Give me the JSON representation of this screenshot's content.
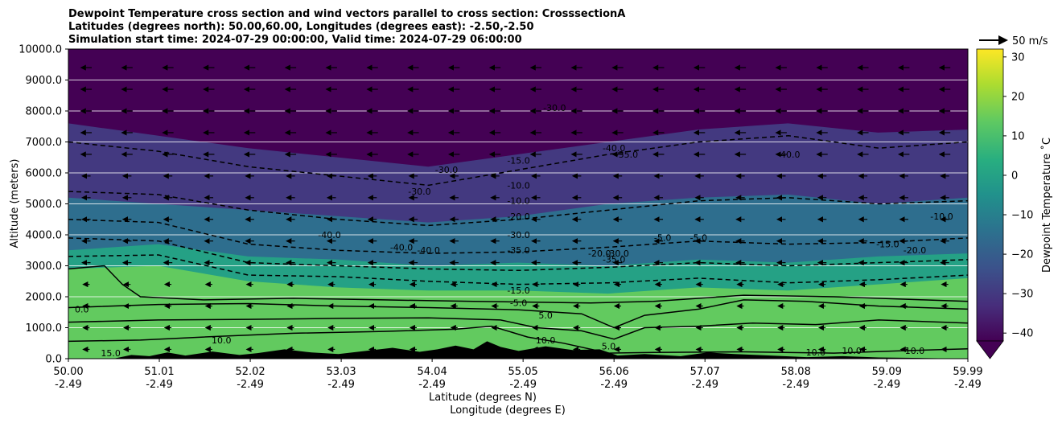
{
  "chart_data": {
    "type": "heatmap",
    "title_lines": [
      "Dewpoint Temperature cross section and wind vectors parallel to cross section: CrosssectionA",
      "Latitudes (degrees north): 50.00,60.00, Longitudes (degrees east): -2.50,-2.50",
      "Simulation start time: 2024-07-29 00:00:00, Valid time: 2024-07-29 06:00:00"
    ],
    "ylabel": "Altitude (meters)",
    "xlabel_lines": [
      "Latitude (degrees N)",
      "Longitude (degrees E)"
    ],
    "ylim": [
      0,
      10000
    ],
    "xlim": [
      50.0,
      59.99
    ],
    "y_ticks": [
      {
        "value": 0,
        "label": "0.0"
      },
      {
        "value": 1000,
        "label": "1000.0"
      },
      {
        "value": 2000,
        "label": "2000.0"
      },
      {
        "value": 3000,
        "label": "3000.0"
      },
      {
        "value": 4000,
        "label": "4000.0"
      },
      {
        "value": 5000,
        "label": "5000.0"
      },
      {
        "value": 6000,
        "label": "6000.0"
      },
      {
        "value": 7000,
        "label": "7000.0"
      },
      {
        "value": 8000,
        "label": "8000.0"
      },
      {
        "value": 9000,
        "label": "9000.0"
      },
      {
        "value": 10000,
        "label": "10000.0"
      }
    ],
    "x_ticks": [
      {
        "value": 50.0,
        "lat": "50.00",
        "lon": "-2.49"
      },
      {
        "value": 51.01,
        "lat": "51.01",
        "lon": "-2.49"
      },
      {
        "value": 52.02,
        "lat": "52.02",
        "lon": "-2.49"
      },
      {
        "value": 53.03,
        "lat": "53.03",
        "lon": "-2.49"
      },
      {
        "value": 54.04,
        "lat": "54.04",
        "lon": "-2.49"
      },
      {
        "value": 55.05,
        "lat": "55.05",
        "lon": "-2.49"
      },
      {
        "value": 56.06,
        "lat": "56.06",
        "lon": "-2.49"
      },
      {
        "value": 57.07,
        "lat": "57.07",
        "lon": "-2.49"
      },
      {
        "value": 58.08,
        "lat": "58.08",
        "lon": "-2.49"
      },
      {
        "value": 59.09,
        "lat": "59.09",
        "lon": "-2.49"
      },
      {
        "value": 59.99,
        "lat": "59.99",
        "lon": "-2.49"
      }
    ],
    "grid": {
      "horizontal": true,
      "vertical": false
    },
    "colorbar": {
      "label": "Dewpoint Temperature ˚C",
      "range": [
        -42,
        32
      ],
      "extend": "min",
      "colormap": "viridis",
      "ticks": [
        {
          "value": -40,
          "label": "−40"
        },
        {
          "value": -30,
          "label": "−30"
        },
        {
          "value": -20,
          "label": "−20"
        },
        {
          "value": -10,
          "label": "−10"
        },
        {
          "value": 0,
          "label": "0"
        },
        {
          "value": 10,
          "label": "10"
        },
        {
          "value": 20,
          "label": "20"
        },
        {
          "value": 30,
          "label": "30"
        }
      ]
    },
    "quiver_key": {
      "label": "50 m/s",
      "speed": 50
    },
    "wind_field": {
      "direction": "toward south (left)",
      "upper_level_speed_ms": 15,
      "lower_level_speed_ms": 3
    },
    "temperature_layers": [
      {
        "top_m": [
          2900,
          3000,
          2500,
          2300,
          2200,
          2200,
          2100,
          2300,
          2200,
          2400,
          2600
        ],
        "dewpoint_c": 14
      },
      {
        "top_m": [
          3500,
          3700,
          3300,
          3200,
          3000,
          3100,
          3000,
          3200,
          3100,
          3300,
          3400
        ],
        "dewpoint_c": 0
      },
      {
        "top_m": [
          5200,
          5000,
          4800,
          4600,
          4400,
          4600,
          5000,
          5200,
          5300,
          5000,
          5200
        ],
        "dewpoint_c": -15
      },
      {
        "top_m": [
          7600,
          7200,
          6800,
          6500,
          6200,
          6600,
          7000,
          7400,
          7600,
          7300,
          7400
        ],
        "dewpoint_c": -30
      },
      {
        "top_m": [
          10000,
          10000,
          10000,
          10000,
          10000,
          10000,
          10000,
          10000,
          10000,
          10000,
          10000
        ],
        "dewpoint_c": -42
      }
    ],
    "terrain_m": [
      {
        "x": 50.0,
        "h": 0
      },
      {
        "x": 50.5,
        "h": 0
      },
      {
        "x": 50.7,
        "h": 120
      },
      {
        "x": 50.9,
        "h": 80
      },
      {
        "x": 51.1,
        "h": 200
      },
      {
        "x": 51.3,
        "h": 100
      },
      {
        "x": 51.6,
        "h": 230
      },
      {
        "x": 51.9,
        "h": 120
      },
      {
        "x": 52.1,
        "h": 180
      },
      {
        "x": 52.4,
        "h": 300
      },
      {
        "x": 52.7,
        "h": 200
      },
      {
        "x": 53.0,
        "h": 150
      },
      {
        "x": 53.3,
        "h": 250
      },
      {
        "x": 53.6,
        "h": 350
      },
      {
        "x": 53.9,
        "h": 220
      },
      {
        "x": 54.1,
        "h": 300
      },
      {
        "x": 54.3,
        "h": 420
      },
      {
        "x": 54.5,
        "h": 300
      },
      {
        "x": 54.65,
        "h": 560
      },
      {
        "x": 54.8,
        "h": 380
      },
      {
        "x": 55.0,
        "h": 250
      },
      {
        "x": 55.3,
        "h": 400
      },
      {
        "x": 55.6,
        "h": 280
      },
      {
        "x": 55.9,
        "h": 300
      },
      {
        "x": 56.1,
        "h": 100
      },
      {
        "x": 56.4,
        "h": 150
      },
      {
        "x": 56.8,
        "h": 80
      },
      {
        "x": 57.1,
        "h": 200
      },
      {
        "x": 57.4,
        "h": 150
      },
      {
        "x": 57.8,
        "h": 100
      },
      {
        "x": 58.2,
        "h": 50
      },
      {
        "x": 58.6,
        "h": 80
      },
      {
        "x": 59.0,
        "h": 40
      },
      {
        "x": 59.5,
        "h": 20
      },
      {
        "x": 59.99,
        "h": 0
      }
    ],
    "contours_solid": [
      {
        "level": "15.0",
        "points": [
          [
            50.0,
            560
          ],
          [
            50.8,
            600
          ],
          [
            51.5,
            700
          ],
          [
            52.5,
            820
          ],
          [
            53.5,
            880
          ],
          [
            54.3,
            950
          ],
          [
            54.7,
            1050
          ],
          [
            55.1,
            700
          ],
          [
            55.5,
            500
          ],
          [
            56.0,
            180
          ],
          [
            56.5,
            200
          ],
          [
            57.5,
            220
          ],
          [
            58.5,
            180
          ],
          [
            59.2,
            250
          ],
          [
            59.99,
            320
          ]
        ]
      },
      {
        "level": "10.0",
        "points": [
          [
            50.0,
            1180
          ],
          [
            51.0,
            1250
          ],
          [
            52.0,
            1270
          ],
          [
            53.0,
            1300
          ],
          [
            54.0,
            1320
          ],
          [
            54.8,
            1250
          ],
          [
            55.2,
            1000
          ],
          [
            55.7,
            900
          ],
          [
            56.06,
            630
          ],
          [
            56.4,
            1000
          ],
          [
            57.0,
            1050
          ],
          [
            57.6,
            1150
          ],
          [
            58.3,
            1100
          ],
          [
            59.0,
            1250
          ],
          [
            59.99,
            1150
          ]
        ]
      },
      {
        "level": "5.0",
        "points": [
          [
            50.0,
            1650
          ],
          [
            51.0,
            1750
          ],
          [
            52.0,
            1780
          ],
          [
            53.0,
            1700
          ],
          [
            54.0,
            1650
          ],
          [
            55.0,
            1580
          ],
          [
            55.7,
            1450
          ],
          [
            56.06,
            1000
          ],
          [
            56.4,
            1400
          ],
          [
            57.0,
            1600
          ],
          [
            57.5,
            1900
          ],
          [
            58.2,
            1850
          ],
          [
            59.0,
            1700
          ],
          [
            59.99,
            1600
          ]
        ]
      },
      {
        "level": "0.0",
        "points": [
          [
            50.0,
            2900
          ],
          [
            50.4,
            3000
          ],
          [
            50.6,
            2400
          ],
          [
            50.8,
            2000
          ],
          [
            51.5,
            1900
          ],
          [
            52.5,
            1950
          ],
          [
            53.5,
            1900
          ],
          [
            54.5,
            1850
          ],
          [
            55.0,
            1830
          ],
          [
            55.8,
            1800
          ],
          [
            56.5,
            1850
          ],
          [
            57.5,
            2050
          ],
          [
            58.5,
            2000
          ],
          [
            59.5,
            1900
          ],
          [
            59.99,
            1850
          ]
        ]
      }
    ],
    "contours_dashed": [
      {
        "level": "-10.0",
        "points": [
          [
            50.0,
            3300
          ],
          [
            51.0,
            3350
          ],
          [
            52.0,
            2700
          ],
          [
            53.0,
            2650
          ],
          [
            54.0,
            2500
          ],
          [
            55.0,
            2400
          ],
          [
            56.0,
            2450
          ],
          [
            57.0,
            2600
          ],
          [
            58.0,
            2450
          ],
          [
            59.0,
            2550
          ],
          [
            59.99,
            2700
          ]
        ]
      },
      {
        "level": "-15.0",
        "points": [
          [
            50.0,
            3900
          ],
          [
            51.0,
            3800
          ],
          [
            52.0,
            3100
          ],
          [
            53.0,
            3000
          ],
          [
            54.0,
            2900
          ],
          [
            55.0,
            2850
          ],
          [
            56.0,
            2950
          ],
          [
            57.0,
            3100
          ],
          [
            58.0,
            3000
          ],
          [
            59.0,
            3100
          ],
          [
            59.99,
            3200
          ]
        ]
      },
      {
        "level": "-20.0",
        "points": [
          [
            50.0,
            4500
          ],
          [
            51.0,
            4400
          ],
          [
            52.0,
            3700
          ],
          [
            53.0,
            3500
          ],
          [
            54.0,
            3400
          ],
          [
            55.0,
            3450
          ],
          [
            56.0,
            3600
          ],
          [
            57.0,
            3800
          ],
          [
            58.0,
            3700
          ],
          [
            59.0,
            3750
          ],
          [
            59.99,
            3900
          ]
        ]
      },
      {
        "level": "-30.0",
        "points": [
          [
            50.0,
            5400
          ],
          [
            51.0,
            5300
          ],
          [
            52.0,
            4800
          ],
          [
            53.0,
            4500
          ],
          [
            54.0,
            4300
          ],
          [
            55.0,
            4500
          ],
          [
            56.0,
            4800
          ],
          [
            57.0,
            5100
          ],
          [
            58.0,
            5200
          ],
          [
            59.0,
            5000
          ],
          [
            59.99,
            5100
          ]
        ]
      },
      {
        "level": "-40.0",
        "points": [
          [
            50.0,
            7000
          ],
          [
            51.0,
            6700
          ],
          [
            52.0,
            6200
          ],
          [
            53.0,
            5900
          ],
          [
            54.0,
            5600
          ],
          [
            55.0,
            6100
          ],
          [
            56.0,
            6600
          ],
          [
            57.0,
            7000
          ],
          [
            58.0,
            7200
          ],
          [
            59.0,
            6800
          ],
          [
            59.99,
            7000
          ]
        ]
      }
    ],
    "contour_labels": [
      {
        "text": "15.0",
        "x": 50.47,
        "y": 80
      },
      {
        "text": "10.0",
        "x": 51.7,
        "y": 500
      },
      {
        "text": "0.0",
        "x": 50.15,
        "y": 1500
      },
      {
        "text": "5.0",
        "x": 55.3,
        "y": 1300
      },
      {
        "text": "10.0",
        "x": 55.3,
        "y": 500
      },
      {
        "text": "5.0",
        "x": 56.0,
        "y": 300
      },
      {
        "text": "10.0",
        "x": 58.3,
        "y": 100
      },
      {
        "text": "10.0",
        "x": 58.7,
        "y": 150
      },
      {
        "text": "10.0",
        "x": 59.4,
        "y": 150
      },
      {
        "text": "-5.0",
        "x": 55.0,
        "y": 1700
      },
      {
        "text": "-15.0",
        "x": 55.0,
        "y": 2100
      },
      {
        "text": "-35.0",
        "x": 55.0,
        "y": 3400
      },
      {
        "text": "-30.0",
        "x": 55.0,
        "y": 3900
      },
      {
        "text": "-20.0",
        "x": 55.0,
        "y": 4500
      },
      {
        "text": "-10.0",
        "x": 55.0,
        "y": 5000
      },
      {
        "text": "-10.0",
        "x": 55.0,
        "y": 5500
      },
      {
        "text": "-15.0",
        "x": 55.0,
        "y": 6300
      },
      {
        "text": "-30.0",
        "x": 55.4,
        "y": 8000
      },
      {
        "text": "-40.0",
        "x": 52.9,
        "y": 3900
      },
      {
        "text": "-40.0",
        "x": 53.7,
        "y": 3500
      },
      {
        "text": "-40.0",
        "x": 54.0,
        "y": 3400
      },
      {
        "text": "-30.0",
        "x": 54.2,
        "y": 6000
      },
      {
        "text": "-30.0",
        "x": 53.9,
        "y": 5300
      },
      {
        "text": "-20.0",
        "x": 55.9,
        "y": 3300
      },
      {
        "text": "-35.0",
        "x": 56.06,
        "y": 3100
      },
      {
        "text": "-30.0",
        "x": 56.1,
        "y": 3300
      },
      {
        "text": "-40.0",
        "x": 56.06,
        "y": 6700
      },
      {
        "text": "-35.0",
        "x": 56.2,
        "y": 6500
      },
      {
        "text": "-5.0",
        "x": 56.6,
        "y": 3800
      },
      {
        "text": "-5.0",
        "x": 57.0,
        "y": 3800
      },
      {
        "text": "-40.0",
        "x": 58.0,
        "y": 6500
      },
      {
        "text": "-10.0",
        "x": 59.7,
        "y": 4500
      },
      {
        "text": "-15.0",
        "x": 59.1,
        "y": 3600
      },
      {
        "text": "-20.0",
        "x": 59.4,
        "y": 3400
      }
    ]
  }
}
